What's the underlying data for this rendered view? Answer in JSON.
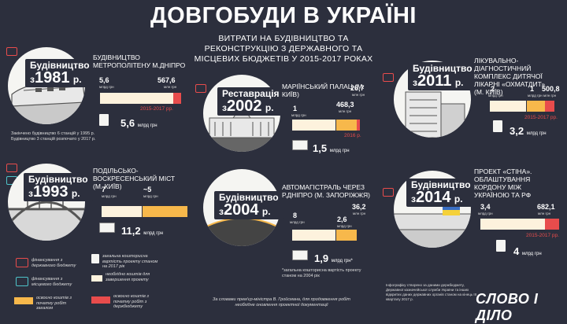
{
  "title": "ДОВГОБУДИ В УКРАЇНІ",
  "subtitle": "ВИТРАТИ НА БУДІВНИЦТВО ТА РЕКОНСТРУКЦІЮ З ДЕРЖАВНОГО ТА МІСЦЕВИХ БЮДЖЕТІВ У 2015-2017 РОКАХ",
  "projects": {
    "metro": {
      "badge_small": "Будівництво",
      "badge_prefix": "з",
      "badge_year": "1981",
      "badge_suffix": "р.",
      "name": "БУДІВНИЦТВО МЕТРОПОЛІТЕНУ М.ДНІПРО",
      "v1": "5,6",
      "u1": "млрд грн",
      "v2": "567,6",
      "u2": "млн грн",
      "yr": "2015-2017 рр.",
      "total": "5,6",
      "total_unit": "млрд грн",
      "note": "Закінчено будівництво 6 станцій у 1995 р. Будівництво 3 станцій розпочато у 2017 р."
    },
    "bridge": {
      "badge_small": "Будівництво",
      "badge_prefix": "з",
      "badge_year": "1993",
      "badge_suffix": "р.",
      "name": "ПОДІЛЬСЬКО-ВОСКРЕСЕНСЬКИЙ МІСТ (М. КИЇВ)",
      "v1": "7",
      "u1": "млрд грн",
      "v2": "~5",
      "u2": "млрд грн",
      "total": "11,2",
      "total_unit": "млрд грн"
    },
    "palace": {
      "badge_small": "Реставрація",
      "badge_prefix": "з",
      "badge_year": "2002",
      "badge_suffix": "р.",
      "name": "МАРІЇНСЬКИЙ ПАЛАЦ (М. КИЇВ)",
      "v1": "1",
      "u1": "млрд грн",
      "v2": "468,3",
      "u2": "млн грн",
      "v3": "26,7",
      "u3": "млн грн",
      "yr": "2016 р.",
      "total": "1,5",
      "total_unit": "млрд грн"
    },
    "highway": {
      "badge_small": "Будівництво",
      "badge_prefix": "з",
      "badge_year": "2004",
      "badge_suffix": "р.",
      "name": "АВТОМАГІСТРАЛЬ ЧЕРЕЗ Р.ДНІПРО (М. ЗАПОРІЖЖЯ)",
      "v1": "8",
      "u1": "млрд грн",
      "v2": "2,6",
      "u2": "млрд грн",
      "v3": "36,2",
      "u3": "млн грн",
      "total": "1,9",
      "total_unit": "млрд грн*",
      "note": "*загальна кошторисна вартість проекту станом на 2004 рік"
    },
    "hospital": {
      "badge_small": "Будівництво",
      "badge_prefix": "з",
      "badge_year": "2011",
      "badge_suffix": "р.",
      "name": "ЛІКУВАЛЬНО-ДІАГНОСТИЧНИЙ КОМПЛЕКС ДИТЯЧОЇ ЛІКАРНІ «ОХМАТДИТ» (М. КИЇВ)",
      "v1": "2",
      "u1": "млрд грн",
      "v2": "1",
      "u2": "млрд грн",
      "v3": "500,8",
      "u3": "млн грн",
      "yr": "2015-2017 рр.",
      "total": "3,2",
      "total_unit": "млрд грн"
    },
    "wall": {
      "badge_small": "Будівництво",
      "badge_prefix": "з",
      "badge_year": "2014",
      "badge_suffix": "р.",
      "name": "ПРОЕКТ «СТІНА». ОБЛАШТУВАННЯ КОРДОНУ МІЖ УКРАЇНОЮ ТА РФ",
      "v1": "3,4",
      "u1": "млрд грн",
      "v2": "682,1",
      "u2": "млн грн",
      "yr": "2015-2017 рр.",
      "total": "4",
      "total_unit": "млрд грн"
    }
  },
  "legend": {
    "state": "фінансування з державного бюджету",
    "local": "фінансування з місцевого бюджету",
    "total_cost": "загальна кошторисна вартість проекту станом на 2017 рік",
    "needed": "необхідно коштів для завершення проекту",
    "spent": "освоєно коштів з початку робіт загалом",
    "spent_state": "освоєно коштів з початку робіт з держбюджету"
  },
  "footer": {
    "quote": "За словами прем'єр-міністра В. Гройсмана, для продовження робіт необхідне оновлення проектної документації",
    "source": "Інфографіку створено за даними держбюджету, Державної казначейської служби України та інших відкритих даних державних органів станом на кінець III кварталу 2017 р.",
    "logo": "СЛОВО І ДІЛО"
  },
  "colors": {
    "bg": "#2c2f3d",
    "cream": "#fdf2dd",
    "orange": "#f7b84b",
    "red": "#e84c4c",
    "state_icon": "#e84c4c",
    "local_icon": "#4ec3c9"
  }
}
